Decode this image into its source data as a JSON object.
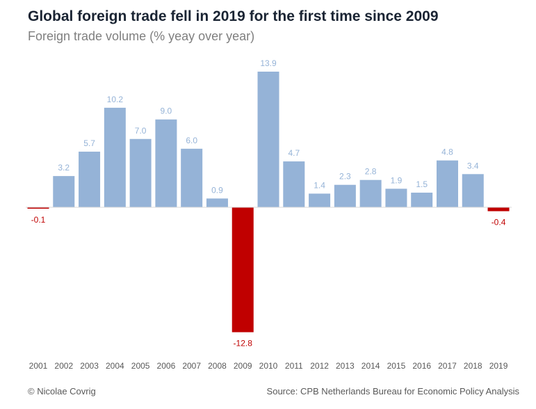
{
  "footer": {
    "left": "© Nicolae Covrig",
    "right": "Source: CPB Netherlands Bureau for Economic Policy Analysis"
  },
  "colors": {
    "positive": "#95b3d7",
    "negative": "#c00000",
    "axis": "#d9d9d9"
  },
  "chart_data": {
    "type": "bar",
    "title": "Global foreign trade fell in 2019 for the first time since 2009",
    "subtitle": "Foreign trade volume (% yeay over year)",
    "xlabel": "",
    "ylabel": "",
    "categories": [
      "2001",
      "2002",
      "2003",
      "2004",
      "2005",
      "2006",
      "2007",
      "2008",
      "2009",
      "2010",
      "2011",
      "2012",
      "2013",
      "2014",
      "2015",
      "2016",
      "2017",
      "2018",
      "2019"
    ],
    "values": [
      -0.1,
      3.2,
      5.7,
      10.2,
      7.0,
      9.0,
      6.0,
      0.9,
      -12.8,
      13.9,
      4.7,
      1.4,
      2.3,
      2.8,
      1.9,
      1.5,
      4.8,
      3.4,
      -0.4
    ],
    "labels": [
      "-0.1",
      "3.2",
      "5.7",
      "10.2",
      "7.0",
      "9.0",
      "6.0",
      "0.9",
      "-12.8",
      "13.9",
      "4.7",
      "1.4",
      "2.3",
      "2.8",
      "1.9",
      "1.5",
      "4.8",
      "3.4",
      "-0.4"
    ],
    "ylim": [
      -12.8,
      13.9
    ],
    "grid": false,
    "legend": "none"
  }
}
